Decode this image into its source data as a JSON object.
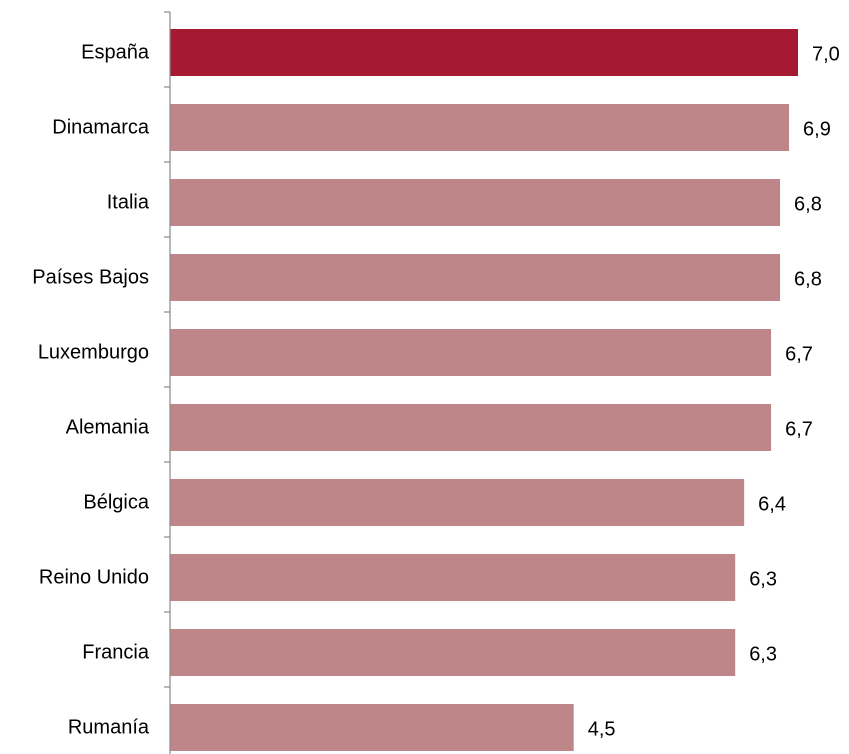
{
  "chart_data": {
    "type": "bar",
    "orientation": "horizontal",
    "categories": [
      "España",
      "Dinamarca",
      "Italia",
      "Países Bajos",
      "Luxemburgo",
      "Alemania",
      "Bélgica",
      "Reino Unido",
      "Francia",
      "Rumanía"
    ],
    "values": [
      7.0,
      6.9,
      6.8,
      6.8,
      6.7,
      6.7,
      6.4,
      6.3,
      6.3,
      4.5
    ],
    "value_labels": [
      "7,0",
      "6,9",
      "6,8",
      "6,8",
      "6,7",
      "6,7",
      "6,4",
      "6,3",
      "6,3",
      "4,5"
    ],
    "highlight_index": 0,
    "colors": {
      "highlight": "#A51931",
      "default": "#BE8688"
    },
    "xlim": [
      0,
      7.0
    ],
    "grid": false,
    "legend": "none",
    "title": "",
    "xlabel": "",
    "ylabel": ""
  }
}
